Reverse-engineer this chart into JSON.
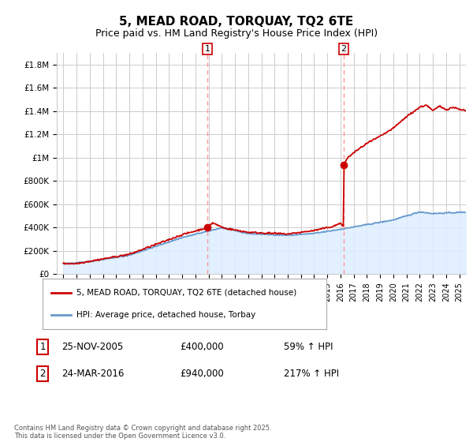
{
  "title": "5, MEAD ROAD, TORQUAY, TQ2 6TE",
  "subtitle": "Price paid vs. HM Land Registry's House Price Index (HPI)",
  "ylabel_ticks": [
    "£0",
    "£200K",
    "£400K",
    "£600K",
    "£800K",
    "£1M",
    "£1.2M",
    "£1.4M",
    "£1.6M",
    "£1.8M"
  ],
  "ytick_values": [
    0,
    200000,
    400000,
    600000,
    800000,
    1000000,
    1200000,
    1400000,
    1600000,
    1800000
  ],
  "ylim": [
    0,
    1900000
  ],
  "xlim_start": 1994.5,
  "xlim_end": 2025.5,
  "sale1_date": 2005.9,
  "sale1_price": 400000,
  "sale1_label": "1",
  "sale1_text": "25-NOV-2005",
  "sale1_price_text": "£400,000",
  "sale1_hpi_text": "59% ↑ HPI",
  "sale2_date": 2016.23,
  "sale2_price": 940000,
  "sale2_label": "2",
  "sale2_text": "24-MAR-2016",
  "sale2_price_text": "£940,000",
  "sale2_hpi_text": "217% ↑ HPI",
  "line_color_sale": "#cc0000",
  "line_color_hpi": "#6699cc",
  "fill_color_hpi": "#ddeeff",
  "vline_color": "#ff9999",
  "background_color": "#ffffff",
  "grid_color": "#cccccc",
  "title_fontsize": 11,
  "subtitle_fontsize": 9,
  "legend_label_sale": "5, MEAD ROAD, TORQUAY, TQ2 6TE (detached house)",
  "legend_label_hpi": "HPI: Average price, detached house, Torbay",
  "footer_text": "Contains HM Land Registry data © Crown copyright and database right 2025.\nThis data is licensed under the Open Government Licence v3.0.",
  "xtick_years": [
    1995,
    1996,
    1997,
    1998,
    1999,
    2000,
    2001,
    2002,
    2003,
    2004,
    2005,
    2006,
    2007,
    2008,
    2009,
    2010,
    2011,
    2012,
    2013,
    2014,
    2015,
    2016,
    2017,
    2018,
    2019,
    2020,
    2021,
    2022,
    2023,
    2024,
    2025
  ]
}
